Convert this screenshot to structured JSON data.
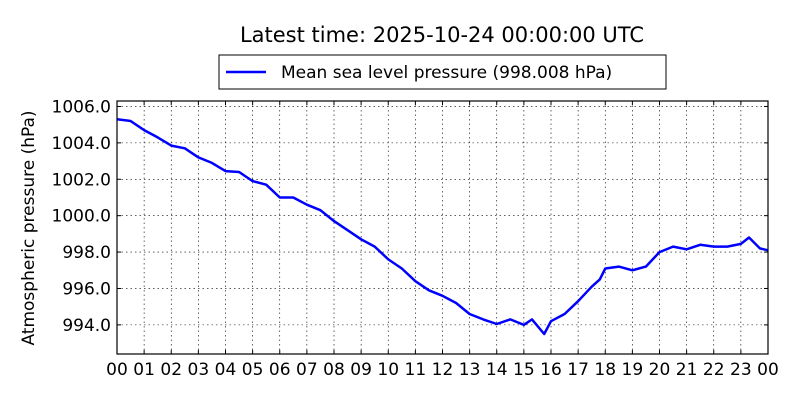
{
  "chart_data": {
    "type": "line",
    "title": "Latest time: 2025-10-24 00:00:00 UTC",
    "xlabel": "",
    "ylabel": "Atmospheric pressure (hPa)",
    "xlim": [
      0,
      24
    ],
    "ylim": [
      992.4,
      1006.3
    ],
    "grid": true,
    "legend_placement": "top-center",
    "x_tick_values": [
      0,
      1,
      2,
      3,
      4,
      5,
      6,
      7,
      8,
      9,
      10,
      11,
      12,
      13,
      14,
      15,
      16,
      17,
      18,
      19,
      20,
      21,
      22,
      23,
      24
    ],
    "x_tick_labels": [
      "00",
      "01",
      "02",
      "03",
      "04",
      "05",
      "06",
      "07",
      "08",
      "09",
      "10",
      "11",
      "12",
      "13",
      "14",
      "15",
      "16",
      "17",
      "18",
      "19",
      "20",
      "21",
      "22",
      "23",
      "00"
    ],
    "y_tick_values": [
      994,
      996,
      998,
      1000,
      1002,
      1004,
      1006
    ],
    "y_tick_labels": [
      "994.0",
      "996.0",
      "998.0",
      "1000.0",
      "1002.0",
      "1004.0",
      "1006.0"
    ],
    "series": [
      {
        "name": "Mean sea level pressure (998.008 hPa)",
        "color": "#0000ff",
        "x": [
          0,
          0.5,
          1,
          1.5,
          2,
          2.5,
          3,
          3.5,
          4,
          4.5,
          5,
          5.5,
          6,
          6.5,
          7,
          7.5,
          8,
          8.5,
          9,
          9.5,
          10,
          10.5,
          11,
          11.5,
          12,
          12.5,
          13,
          13.5,
          14,
          14.5,
          15,
          15.3,
          15.75,
          16,
          16.5,
          17,
          17.5,
          17.8,
          18,
          18.5,
          19,
          19.5,
          20,
          20.5,
          21,
          21.5,
          22,
          22.5,
          23,
          23.3,
          23.7,
          24
        ],
        "values": [
          1005.3,
          1005.2,
          1004.7,
          1004.3,
          1003.85,
          1003.7,
          1003.2,
          1002.9,
          1002.45,
          1002.4,
          1001.9,
          1001.7,
          1001.0,
          1001.0,
          1000.6,
          1000.3,
          999.7,
          999.2,
          998.7,
          998.3,
          997.6,
          997.1,
          996.4,
          995.9,
          995.6,
          995.2,
          994.6,
          994.3,
          994.05,
          994.3,
          994.0,
          994.3,
          993.5,
          994.2,
          994.6,
          995.3,
          996.1,
          996.5,
          997.1,
          997.2,
          997.0,
          997.2,
          998.0,
          998.3,
          998.15,
          998.4,
          998.3,
          998.3,
          998.45,
          998.8,
          998.2,
          998.1
        ]
      }
    ]
  }
}
